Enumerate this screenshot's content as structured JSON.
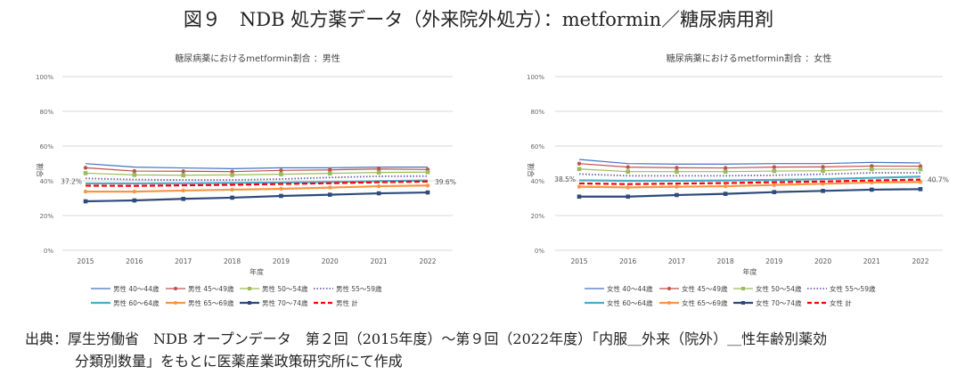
{
  "title": "図９　NDB 処方薬データ（外来院外処方）：metformin／糖尿病用剤",
  "source_line1": "出典：厚生労働省　NDB オープンデータ　第２回（2015年度）～第９回（2022年度）「内服＿外来（院外）＿性年齢別薬効",
  "source_line2": "分類別数量」をもとに医薬産業政策研究所にて作成",
  "chart_data": [
    {
      "type": "line",
      "title": "糖尿病薬におけるmetformin割合 ：男性",
      "xlabel": "年度",
      "ylabel": "割合",
      "x": [
        "2015",
        "2016",
        "2017",
        "2018",
        "2019",
        "2020",
        "2021",
        "2022"
      ],
      "yticks": [
        "0%",
        "20%",
        "40%",
        "60%",
        "80%",
        "100%"
      ],
      "ylim": [
        0,
        100
      ],
      "grid": true,
      "legend": "bottom",
      "annotations": {
        "start": "37.2%",
        "end": "39.6%"
      },
      "series": [
        {
          "name": "男性 40～44歳",
          "color": "#4472c4",
          "style": "solid",
          "marker": "none",
          "values": [
            49.9,
            47.9,
            47.4,
            47.0,
            47.5,
            47.5,
            47.9,
            47.9
          ]
        },
        {
          "name": "男性 45～49歳",
          "color": "#c0504d",
          "style": "solid",
          "marker": "circle",
          "values": [
            47.5,
            45.6,
            45.5,
            45.3,
            46.0,
            46.3,
            46.8,
            46.5
          ]
        },
        {
          "name": "男性 50～54歳",
          "color": "#9bbb59",
          "style": "solid",
          "marker": "square",
          "values": [
            44.4,
            43.4,
            43.2,
            43.4,
            43.8,
            44.3,
            44.8,
            45.0
          ]
        },
        {
          "name": "男性 55～59歳",
          "color": "#7060a8",
          "style": "dotted",
          "marker": "none",
          "values": [
            41.4,
            40.7,
            40.5,
            40.5,
            41.0,
            41.9,
            42.6,
            42.7
          ]
        },
        {
          "name": "男性 60～64歳",
          "color": "#4bacc6",
          "style": "thick",
          "marker": "none",
          "values": [
            38.5,
            38.5,
            38.6,
            38.8,
            39.0,
            39.3,
            39.8,
            40.2
          ]
        },
        {
          "name": "男性 65～69歳",
          "color": "#f79646",
          "style": "thick",
          "marker": "circle",
          "values": [
            33.8,
            33.8,
            34.4,
            34.9,
            35.4,
            36.1,
            36.9,
            37.3
          ]
        },
        {
          "name": "男性 70～74歳",
          "color": "#2e4a7a",
          "style": "thick",
          "marker": "square",
          "values": [
            28.2,
            28.7,
            29.6,
            30.3,
            31.3,
            32.0,
            32.8,
            33.3
          ]
        },
        {
          "name": "男性 計",
          "color": "#ff0000",
          "style": "dashed",
          "marker": "none",
          "values": [
            37.2,
            37.1,
            37.4,
            37.7,
            38.2,
            38.6,
            39.2,
            39.6
          ]
        }
      ]
    },
    {
      "type": "line",
      "title": "糖尿病薬におけるmetformin割合 ：女性",
      "xlabel": "年度",
      "ylabel": "割合",
      "x": [
        "2015",
        "2016",
        "2017",
        "2018",
        "2019",
        "2020",
        "2021",
        "2022"
      ],
      "yticks": [
        "0%",
        "20%",
        "40%",
        "60%",
        "80%",
        "100%"
      ],
      "ylim": [
        0,
        100
      ],
      "grid": true,
      "legend": "bottom",
      "annotations": {
        "start": "38.5%",
        "end": "40.7%"
      },
      "series": [
        {
          "name": "女性 40～44歳",
          "color": "#4472c4",
          "style": "solid",
          "marker": "none",
          "values": [
            52.3,
            49.9,
            49.6,
            49.6,
            49.9,
            49.9,
            50.6,
            50.3
          ]
        },
        {
          "name": "女性 45～49歳",
          "color": "#c0504d",
          "style": "solid",
          "marker": "circle",
          "values": [
            49.9,
            47.9,
            47.5,
            47.4,
            47.9,
            48.0,
            48.5,
            48.4
          ]
        },
        {
          "name": "女性 50～54歳",
          "color": "#9bbb59",
          "style": "solid",
          "marker": "square",
          "values": [
            46.8,
            45.3,
            45.3,
            45.3,
            45.6,
            45.8,
            46.7,
            46.7
          ]
        },
        {
          "name": "女性 55～59歳",
          "color": "#7060a8",
          "style": "dotted",
          "marker": "none",
          "values": [
            43.9,
            42.9,
            42.9,
            42.9,
            43.2,
            43.8,
            44.6,
            44.6
          ]
        },
        {
          "name": "女性 60～64歳",
          "color": "#4bacc6",
          "style": "thick",
          "marker": "none",
          "values": [
            40.3,
            40.0,
            40.0,
            40.2,
            40.5,
            41.0,
            41.7,
            42.4
          ]
        },
        {
          "name": "女性 65～69歳",
          "color": "#f79646",
          "style": "thick",
          "marker": "circle",
          "values": [
            36.6,
            36.2,
            36.6,
            36.9,
            37.6,
            38.3,
            39.0,
            39.3
          ]
        },
        {
          "name": "女性 70～74歳",
          "color": "#2e4a7a",
          "style": "thick",
          "marker": "square",
          "values": [
            30.9,
            30.9,
            31.8,
            32.5,
            33.5,
            34.2,
            34.9,
            35.2
          ]
        },
        {
          "name": "女性 計",
          "color": "#ff0000",
          "style": "dashed",
          "marker": "none",
          "values": [
            38.5,
            38.1,
            38.4,
            38.7,
            39.2,
            39.6,
            40.2,
            40.7
          ]
        }
      ]
    }
  ]
}
